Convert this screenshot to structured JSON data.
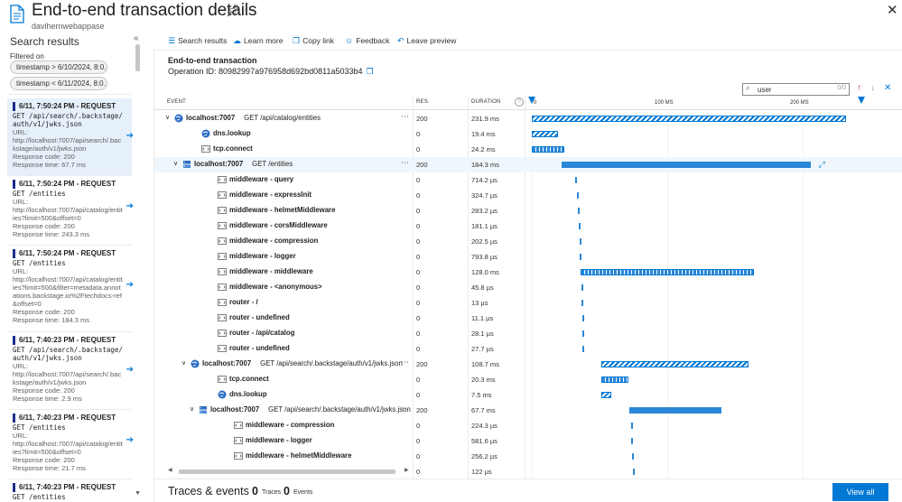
{
  "header": {
    "title": "End-to-end transaction details",
    "resource": "davihernwebappase"
  },
  "left_pane": {
    "title": "Search results",
    "filtered_label": "Filtered on",
    "filters": [
      "timestamp > 6/10/2024, 8:0...",
      "timestamp < 6/11/2024, 8:0..."
    ],
    "results": [
      {
        "header": "6/11, 7:50:24 PM - REQUEST",
        "request": "GET /api/search/.backstage/auth/v1/jwks.json",
        "url_label": "URL:",
        "url": "http://localhost:7007/api/search/.backstage/auth/v1/jwks.json",
        "response_code": "Response code: 200",
        "response_time": "Response time: 67.7 ms"
      },
      {
        "header": "6/11, 7:50:24 PM - REQUEST",
        "request": "GET /entities",
        "url_label": "URL:",
        "url": "http://localhost:7007/api/catalog/entities?limit=500&offset=0",
        "response_code": "Response code: 200",
        "response_time": "Response time: 243.3 ms"
      },
      {
        "header": "6/11, 7:50:24 PM - REQUEST",
        "request": "GET /entities",
        "url_label": "URL:",
        "url": "http://localhost:7007/api/catalog/entities?limit=500&filter=metadata.annotations.backstage.io%2Ftechdocs-ref&offset=0",
        "response_code": "Response code: 200",
        "response_time": "Response time: 184.3 ms"
      },
      {
        "header": "6/11, 7:40:23 PM - REQUEST",
        "request": "GET /api/search/.backstage/auth/v1/jwks.json",
        "url_label": "URL:",
        "url": "http://localhost:7007/api/search/.backstage/auth/v1/jwks.json",
        "response_code": "Response code: 200",
        "response_time": "Response time: 2.9 ms"
      },
      {
        "header": "6/11, 7:40:23 PM - REQUEST",
        "request": "GET /entities",
        "url_label": "URL:",
        "url": "http://localhost:7007/api/catalog/entities?limit=500&offset=0",
        "response_code": "Response code: 200",
        "response_time": "Response time: 21.7 ms"
      },
      {
        "header": "6/11, 7:40:23 PM - REQUEST",
        "request": "GET /entities"
      }
    ]
  },
  "toolbar": {
    "search_results": "Search results",
    "learn_more": "Learn more",
    "copy_link": "Copy link",
    "feedback": "Feedback",
    "leave_preview": "Leave preview"
  },
  "transaction": {
    "title": "End-to-end transaction",
    "operation_id": "Operation ID: 80982997a976958d692bd0811a5033b4"
  },
  "search": {
    "value": "user",
    "count": "0/0"
  },
  "grid": {
    "columns": {
      "event": "EVENT",
      "res": "RES.",
      "duration": "DURATION"
    },
    "axis_ticks": [
      "0",
      "100 MS",
      "200 MS"
    ],
    "axis_max_ms": 243.3,
    "rows": [
      {
        "name": "localhost:7007",
        "op": "GET /api/catalog/entities",
        "res": "200",
        "duration": "231.9 ms",
        "start_ms": 0,
        "dur_ms": 231.9,
        "style": "hatch",
        "level": 0,
        "expandable": true,
        "icon": "globe"
      },
      {
        "name": "dns.lookup",
        "op": "",
        "res": "0",
        "duration": "19.4 ms",
        "start_ms": 0,
        "dur_ms": 19.4,
        "style": "hatch",
        "level": 1,
        "icon": "globe"
      },
      {
        "name": "tcp.connect",
        "op": "",
        "res": "0",
        "duration": "24.2 ms",
        "start_ms": 0,
        "dur_ms": 24.2,
        "style": "cross",
        "level": 1,
        "icon": "code"
      },
      {
        "name": "localhost:7007",
        "op": "GET /entities",
        "res": "200",
        "duration": "184.3 ms",
        "start_ms": 22,
        "dur_ms": 184.3,
        "style": "solid",
        "level": 0.5,
        "expandable": true,
        "icon": "server",
        "selected": true
      },
      {
        "name": "middleware - query",
        "op": "",
        "res": "0",
        "duration": "714.2 µs",
        "start_ms": 32,
        "dur_ms": 0.7142,
        "style": "tiny",
        "level": 2,
        "icon": "code"
      },
      {
        "name": "middleware - expressInit",
        "op": "",
        "res": "0",
        "duration": "324.7 µs",
        "start_ms": 33,
        "dur_ms": 0.3247,
        "style": "tiny",
        "level": 2,
        "icon": "code"
      },
      {
        "name": "middleware - helmetMiddleware",
        "op": "",
        "res": "0",
        "duration": "283.2 µs",
        "start_ms": 34,
        "dur_ms": 0.2832,
        "style": "tiny",
        "level": 2,
        "icon": "code"
      },
      {
        "name": "middleware - corsMiddleware",
        "op": "",
        "res": "0",
        "duration": "181.1 µs",
        "start_ms": 34.5,
        "dur_ms": 0.1811,
        "style": "tiny",
        "level": 2,
        "icon": "code"
      },
      {
        "name": "middleware - compression",
        "op": "",
        "res": "0",
        "duration": "202.5 µs",
        "start_ms": 35,
        "dur_ms": 0.2025,
        "style": "tiny",
        "level": 2,
        "icon": "code"
      },
      {
        "name": "middleware - logger",
        "op": "",
        "res": "0",
        "duration": "793.8 µs",
        "start_ms": 35.5,
        "dur_ms": 0.7938,
        "style": "tiny",
        "level": 2,
        "icon": "code"
      },
      {
        "name": "middleware - middleware",
        "op": "",
        "res": "0",
        "duration": "128.0 ms",
        "start_ms": 36,
        "dur_ms": 128.0,
        "style": "cross",
        "level": 2,
        "icon": "code"
      },
      {
        "name": "middleware - <anonymous>",
        "op": "",
        "res": "0",
        "duration": "45.8 µs",
        "start_ms": 36.5,
        "dur_ms": 0.0458,
        "style": "tiny",
        "level": 2,
        "icon": "code"
      },
      {
        "name": "router - /",
        "op": "",
        "res": "0",
        "duration": "13 µs",
        "start_ms": 36.8,
        "dur_ms": 0.013,
        "style": "tiny",
        "level": 2,
        "icon": "code"
      },
      {
        "name": "router - undefined",
        "op": "",
        "res": "0",
        "duration": "11.1 µs",
        "start_ms": 37,
        "dur_ms": 0.0111,
        "style": "tiny",
        "level": 2,
        "icon": "code"
      },
      {
        "name": "router - /api/catalog",
        "op": "",
        "res": "0",
        "duration": "28.1 µs",
        "start_ms": 37.2,
        "dur_ms": 0.0281,
        "style": "tiny",
        "level": 2,
        "icon": "code"
      },
      {
        "name": "router - undefined",
        "op": "",
        "res": "0",
        "duration": "27.7 µs",
        "start_ms": 37.4,
        "dur_ms": 0.0277,
        "style": "tiny",
        "level": 2,
        "icon": "code"
      },
      {
        "name": "localhost:7007",
        "op": "GET /api/search/.backstage/auth/v1/jwks.json",
        "res": "200",
        "duration": "108.7 ms",
        "start_ms": 51,
        "dur_ms": 108.7,
        "style": "hatch",
        "level": 1,
        "expandable": true,
        "icon": "globe"
      },
      {
        "name": "tcp.connect",
        "op": "",
        "res": "0",
        "duration": "20.3 ms",
        "start_ms": 51,
        "dur_ms": 20.3,
        "style": "cross",
        "level": 2,
        "icon": "code"
      },
      {
        "name": "dns.lookup",
        "op": "",
        "res": "0",
        "duration": "7.5 ms",
        "start_ms": 51,
        "dur_ms": 7.5,
        "style": "hatch",
        "level": 2,
        "icon": "globe"
      },
      {
        "name": "localhost:7007",
        "op": "GET /api/search/.backstage/auth/v1/jwks.json",
        "res": "200",
        "duration": "67.7 ms",
        "start_ms": 72,
        "dur_ms": 67.7,
        "style": "solid",
        "level": 1.5,
        "expandable": true,
        "icon": "server"
      },
      {
        "name": "middleware - compression",
        "op": "",
        "res": "0",
        "duration": "224.3 µs",
        "start_ms": 73,
        "dur_ms": 0.2243,
        "style": "tiny",
        "level": 3,
        "icon": "code"
      },
      {
        "name": "middleware - logger",
        "op": "",
        "res": "0",
        "duration": "581.6 µs",
        "start_ms": 73.5,
        "dur_ms": 0.5816,
        "style": "tiny",
        "level": 3,
        "icon": "code"
      },
      {
        "name": "middleware - helmetMiddleware",
        "op": "",
        "res": "0",
        "duration": "256.2 µs",
        "start_ms": 74,
        "dur_ms": 0.2562,
        "style": "tiny",
        "level": 3,
        "icon": "code"
      },
      {
        "name": "",
        "op": "",
        "res": "0",
        "duration": "122 µs",
        "start_ms": 74.5,
        "dur_ms": 0.122,
        "style": "tiny",
        "level": 3,
        "icon": "none"
      }
    ]
  },
  "bottom": {
    "title": "Traces & events",
    "traces_count": "0",
    "traces_label": "Traces",
    "events_count": "0",
    "events_label": "Events",
    "view_all": "View all"
  },
  "colors": {
    "accent": "#0078d4",
    "selected_row": "#eff6fc"
  }
}
